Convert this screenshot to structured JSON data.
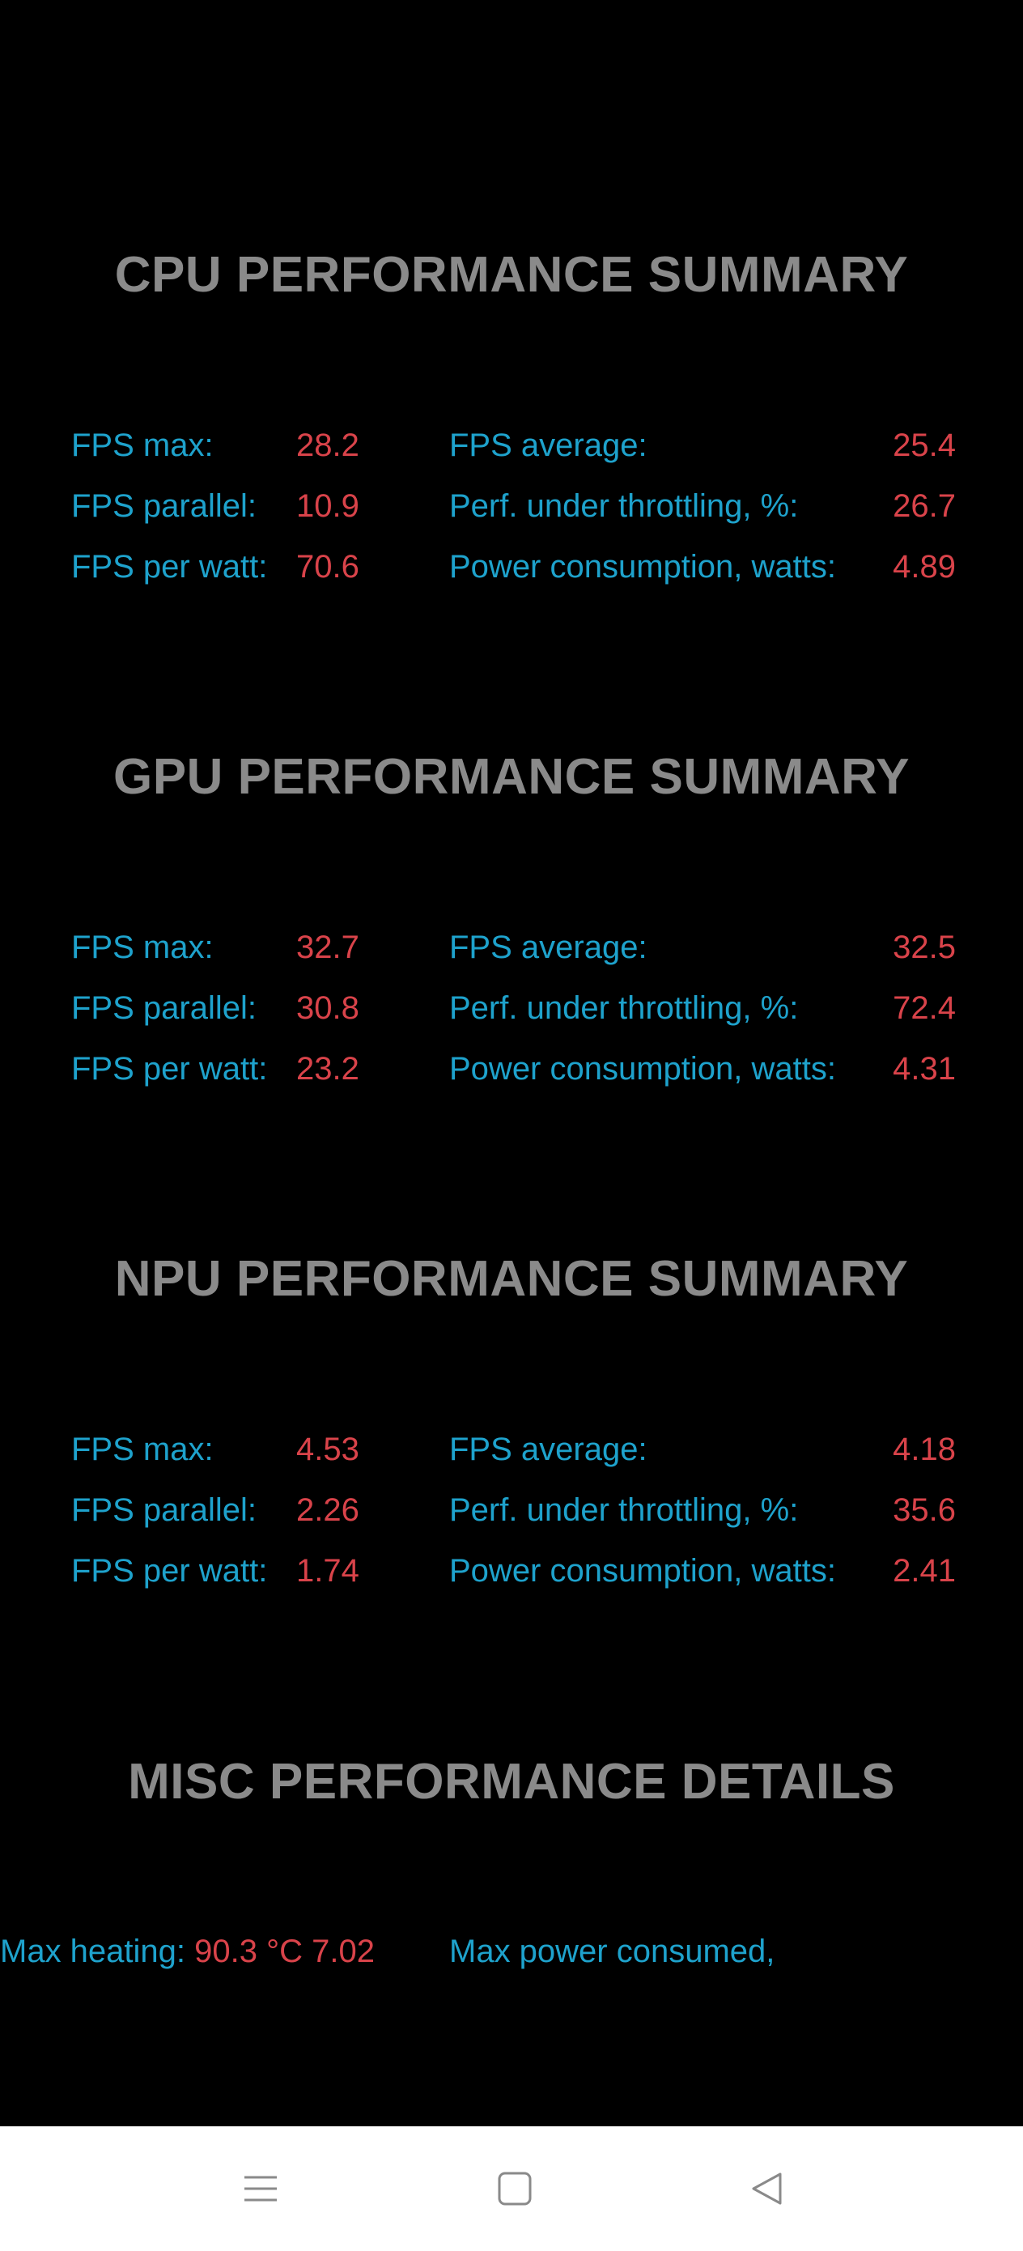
{
  "sections": [
    {
      "title": "CPU PERFORMANCE SUMMARY",
      "rows": [
        {
          "left_label": "FPS max:",
          "left_value": "28.2",
          "right_label": "FPS average:",
          "right_value": "25.4"
        },
        {
          "left_label": "FPS parallel:",
          "left_value": "10.9",
          "right_label": "Perf. under throttling, %:",
          "right_value": "26.7"
        },
        {
          "left_label": "FPS per watt:",
          "left_value": "70.6",
          "right_label": "Power consumption, watts:",
          "right_value": "4.89"
        }
      ]
    },
    {
      "title": "GPU PERFORMANCE SUMMARY",
      "rows": [
        {
          "left_label": "FPS max:",
          "left_value": "32.7",
          "right_label": "FPS average:",
          "right_value": "32.5"
        },
        {
          "left_label": "FPS parallel:",
          "left_value": "30.8",
          "right_label": "Perf. under throttling, %:",
          "right_value": "72.4"
        },
        {
          "left_label": "FPS per watt:",
          "left_value": "23.2",
          "right_label": "Power consumption, watts:",
          "right_value": "4.31"
        }
      ]
    },
    {
      "title": "NPU PERFORMANCE SUMMARY",
      "rows": [
        {
          "left_label": "FPS max:",
          "left_value": "4.53",
          "right_label": "FPS average:",
          "right_value": "4.18"
        },
        {
          "left_label": "FPS parallel:",
          "left_value": "2.26",
          "right_label": "Perf. under throttling, %:",
          "right_value": "35.6"
        },
        {
          "left_label": "FPS per watt:",
          "left_value": "1.74",
          "right_label": "Power consumption, watts:",
          "right_value": "2.41"
        }
      ]
    }
  ],
  "misc": {
    "title": "MISC PERFORMANCE DETAILS",
    "left_label": "Max heating:",
    "left_value": "90.3 °C",
    "right_label": "Max power consumed, watts:",
    "right_value": "7.02"
  },
  "navbar": {
    "icons": [
      "menu-icon",
      "home-icon",
      "back-icon"
    ]
  },
  "colors": {
    "background": "#000000",
    "title": "#8a8a8a",
    "label": "#1ea2cc",
    "value": "#d9434a",
    "navbar": "#ffffff"
  }
}
